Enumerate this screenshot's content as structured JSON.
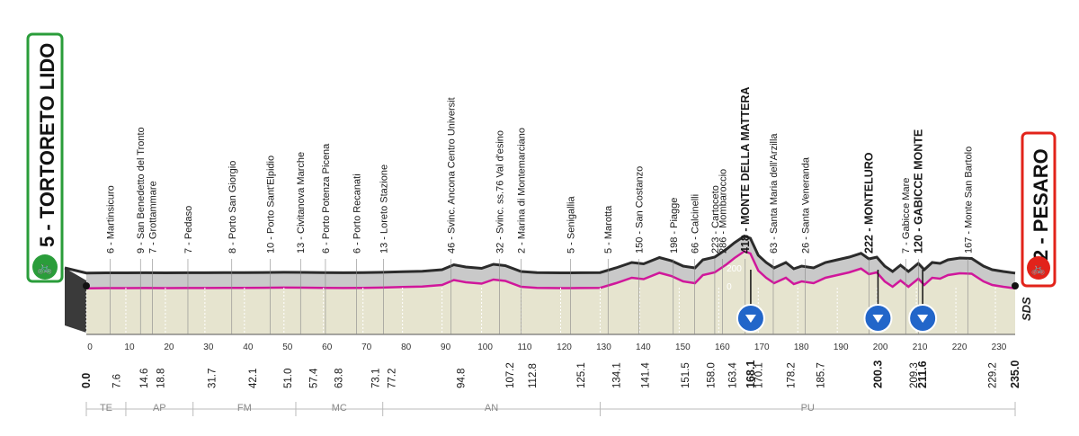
{
  "start": {
    "label": "5 - TORTORETO LIDO",
    "color": "#2a9d3a"
  },
  "finish": {
    "label": "2 - PESARO",
    "color": "#e2231a"
  },
  "brand": "SDS",
  "elevation_ticks": [
    "200",
    "0"
  ],
  "waypoints": [
    {
      "km": 6,
      "label": "6 - Martinsicuro",
      "bold": false
    },
    {
      "km": 13.7,
      "label": "9 - San Benedetto del Tronto",
      "bold": false
    },
    {
      "km": 16.7,
      "label": "7 - Grottammare",
      "bold": false
    },
    {
      "km": 25.7,
      "label": "7 - Pedaso",
      "bold": false
    },
    {
      "km": 36.8,
      "label": "8 - Porto San Giorgio",
      "bold": false
    },
    {
      "km": 46.5,
      "label": "10 - Porto Sant'Elpidio",
      "bold": false
    },
    {
      "km": 54.2,
      "label": "13 - Civitanova Marche",
      "bold": false
    },
    {
      "km": 60.5,
      "label": "6 - Porto Potenza Picena",
      "bold": false
    },
    {
      "km": 68.4,
      "label": "6 - Porto Recanati",
      "bold": false
    },
    {
      "km": 75.2,
      "label": "13 - Loreto Stazione",
      "bold": false
    },
    {
      "km": 92.3,
      "label": "46 - Svinc. Ancona Centro Universit",
      "bold": false
    },
    {
      "km": 104.5,
      "label": "32 - Svinc. ss.76 Val d'esino",
      "bold": false
    },
    {
      "km": 110,
      "label": "2 - Marina di Montemarciano",
      "bold": false
    },
    {
      "km": 122.5,
      "label": "5 - Senigallia",
      "bold": false
    },
    {
      "km": 132,
      "label": "5 - Marotta",
      "bold": false
    },
    {
      "km": 139.8,
      "label": "150 - San Costanzo",
      "bold": false
    },
    {
      "km": 148.5,
      "label": "198 - Piagge",
      "bold": false
    },
    {
      "km": 153.9,
      "label": "66 - Calcinelli",
      "bold": false
    },
    {
      "km": 159,
      "label": "223 - Cartoceto",
      "bold": false
    },
    {
      "km": 161,
      "label": "286 - Mombaroccio",
      "bold": false
    },
    {
      "km": 166.7,
      "label": "418 - MONTE DELLA MATTERA",
      "bold": true
    },
    {
      "km": 173.8,
      "label": "63 - Santa Maria dell'Arzilla",
      "bold": false
    },
    {
      "km": 181.9,
      "label": "26 - Santa Veneranda",
      "bold": false
    },
    {
      "km": 198,
      "label": "222 - MONTELURO",
      "bold": true
    },
    {
      "km": 207.3,
      "label": "7 - Gabicce Mare",
      "bold": false
    },
    {
      "km": 210.5,
      "label": "120 - GABICCE MONTE",
      "bold": true
    },
    {
      "km": 223,
      "label": "167 - Monte San Bartolo",
      "bold": false
    }
  ],
  "km_scale": [
    "0",
    "10",
    "20",
    "30",
    "40",
    "50",
    "60",
    "70",
    "80",
    "90",
    "100",
    "110",
    "120",
    "130",
    "140",
    "150",
    "160",
    "170",
    "180",
    "190",
    "200",
    "210",
    "220",
    "230"
  ],
  "distances": [
    {
      "km": 0.0,
      "label": "0.0",
      "bold": true
    },
    {
      "km": 7.6,
      "label": "7.6",
      "bold": false
    },
    {
      "km": 14.6,
      "label": "14.6",
      "bold": false
    },
    {
      "km": 18.8,
      "label": "18.8",
      "bold": false
    },
    {
      "km": 31.7,
      "label": "31.7",
      "bold": false
    },
    {
      "km": 42.1,
      "label": "42.1",
      "bold": false
    },
    {
      "km": 51.0,
      "label": "51.0",
      "bold": false
    },
    {
      "km": 57.4,
      "label": "57.4",
      "bold": false
    },
    {
      "km": 63.8,
      "label": "63.8",
      "bold": false
    },
    {
      "km": 73.1,
      "label": "73.1",
      "bold": false
    },
    {
      "km": 77.2,
      "label": "77.2",
      "bold": false
    },
    {
      "km": 94.8,
      "label": "94.8",
      "bold": false
    },
    {
      "km": 107.2,
      "label": "107.2",
      "bold": false
    },
    {
      "km": 112.8,
      "label": "112.8",
      "bold": false
    },
    {
      "km": 125.1,
      "label": "125.1",
      "bold": false
    },
    {
      "km": 134.1,
      "label": "134.1",
      "bold": false
    },
    {
      "km": 141.4,
      "label": "141.4",
      "bold": false
    },
    {
      "km": 151.5,
      "label": "151.5",
      "bold": false
    },
    {
      "km": 158.0,
      "label": "158.0",
      "bold": false
    },
    {
      "km": 163.4,
      "label": "163.4",
      "bold": false
    },
    {
      "km": 168.1,
      "label": "168.1",
      "bold": true
    },
    {
      "km": 170.1,
      "label": "170.1",
      "bold": false
    },
    {
      "km": 178.2,
      "label": "178.2",
      "bold": false
    },
    {
      "km": 185.7,
      "label": "185.7",
      "bold": false
    },
    {
      "km": 200.3,
      "label": "200.3",
      "bold": true
    },
    {
      "km": 209.3,
      "label": "209.3",
      "bold": false
    },
    {
      "km": 211.6,
      "label": "211.6",
      "bold": true
    },
    {
      "km": 229.2,
      "label": "229.2",
      "bold": false
    },
    {
      "km": 235.0,
      "label": "235.0",
      "bold": true
    }
  ],
  "provinces": [
    "TE",
    "AP",
    "FM",
    "MC",
    "AN",
    "PU"
  ],
  "profile": [
    [
      0,
      3
    ],
    [
      5,
      5
    ],
    [
      10,
      5
    ],
    [
      15,
      6
    ],
    [
      20,
      5
    ],
    [
      25,
      6
    ],
    [
      30,
      6
    ],
    [
      35,
      7
    ],
    [
      40,
      8
    ],
    [
      45,
      9
    ],
    [
      50,
      11
    ],
    [
      55,
      10
    ],
    [
      60,
      7
    ],
    [
      65,
      6
    ],
    [
      70,
      7
    ],
    [
      75,
      11
    ],
    [
      80,
      18
    ],
    [
      85,
      22
    ],
    [
      90,
      40
    ],
    [
      93,
      95
    ],
    [
      96,
      70
    ],
    [
      100,
      55
    ],
    [
      103,
      100
    ],
    [
      106,
      85
    ],
    [
      110,
      20
    ],
    [
      114,
      8
    ],
    [
      120,
      5
    ],
    [
      125,
      6
    ],
    [
      130,
      8
    ],
    [
      134,
      60
    ],
    [
      138,
      120
    ],
    [
      141,
      105
    ],
    [
      145,
      175
    ],
    [
      148,
      140
    ],
    [
      151,
      80
    ],
    [
      154,
      60
    ],
    [
      156,
      150
    ],
    [
      159,
      180
    ],
    [
      162,
      270
    ],
    [
      164,
      340
    ],
    [
      166.5,
      415
    ],
    [
      168,
      390
    ],
    [
      170,
      200
    ],
    [
      172,
      120
    ],
    [
      174,
      60
    ],
    [
      177,
      120
    ],
    [
      179,
      50
    ],
    [
      181,
      80
    ],
    [
      184,
      60
    ],
    [
      187,
      120
    ],
    [
      190,
      150
    ],
    [
      193,
      180
    ],
    [
      196,
      222
    ],
    [
      198,
      160
    ],
    [
      200,
      180
    ],
    [
      202,
      80
    ],
    [
      204,
      20
    ],
    [
      206,
      90
    ],
    [
      208,
      20
    ],
    [
      210.5,
      110
    ],
    [
      212,
      40
    ],
    [
      214,
      120
    ],
    [
      216,
      110
    ],
    [
      218,
      150
    ],
    [
      221,
      170
    ],
    [
      224,
      165
    ],
    [
      227,
      80
    ],
    [
      229.2,
      40
    ],
    [
      232,
      20
    ],
    [
      235,
      2
    ]
  ],
  "climb_markers_km": [
    168.1,
    200.3,
    211.6
  ]
}
